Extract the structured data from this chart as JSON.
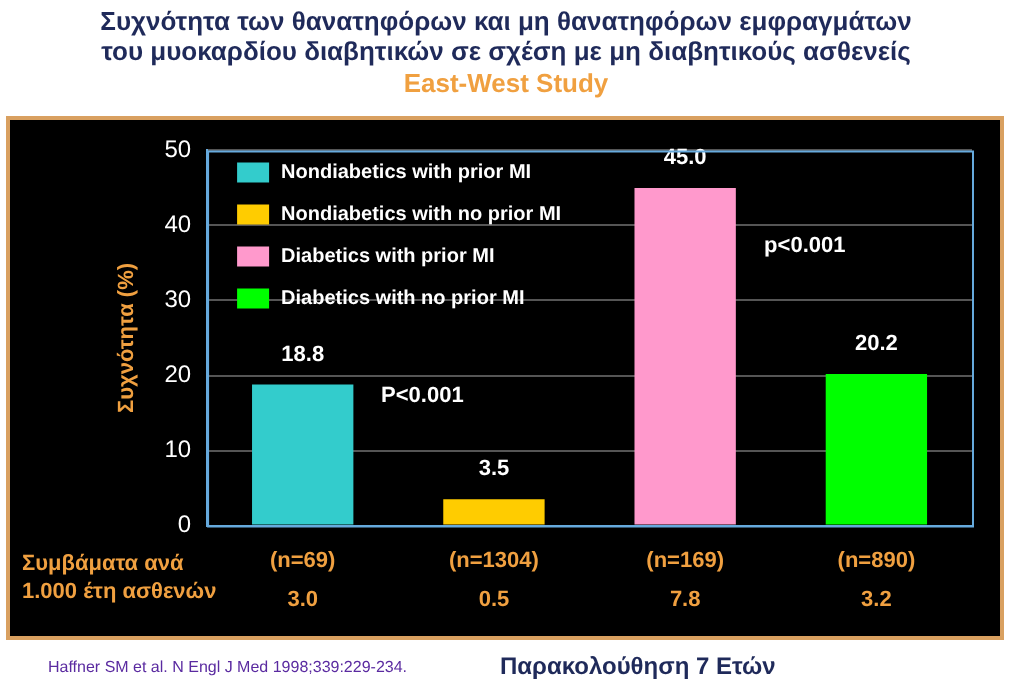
{
  "chart_data": {
    "type": "bar",
    "title": "Συχνότητα των θανατηφόρων και μη θανατηφόρων εμφραγμάτων του μυοκαρδίου διαβητικών σε σχέση με μη διαβητικούς ασθενείς",
    "subtitle": "East-West Study",
    "ylabel": "Συχνότητα (%)",
    "xlabel": "Παρακολούθηση 7 Ετών",
    "categories": [
      "(n=69)",
      "(n=1304)",
      "(n=169)",
      "(n=890)"
    ],
    "series": [
      {
        "name": "Nondiabetics with prior MI",
        "color": "#33cccc",
        "values": [
          18.8,
          null,
          null,
          null
        ],
        "value_labels": [
          "18.8",
          null,
          null,
          null
        ]
      },
      {
        "name": "Nondiabetics with no prior MI",
        "color": "#ffcc00",
        "values": [
          null,
          3.5,
          null,
          null
        ],
        "value_labels": [
          null,
          "3.5",
          null,
          null
        ]
      },
      {
        "name": "Diabetics with prior MI",
        "color": "#ff99cc",
        "values": [
          null,
          null,
          45.0,
          null
        ],
        "value_labels": [
          null,
          null,
          "45.0",
          null
        ]
      },
      {
        "name": "Diabetics with no prior MI",
        "color": "#00ff00",
        "values": [
          null,
          null,
          null,
          20.2
        ],
        "value_labels": [
          null,
          null,
          null,
          "20.2"
        ]
      }
    ],
    "ylim": [
      0,
      50
    ],
    "yticks": [
      0,
      10,
      20,
      30,
      40,
      50
    ],
    "grid": "y",
    "legend": "top left",
    "annotations": [
      "P<0.001",
      "p<0.001",
      "Συμβάματα ανά 1.000 έτη ασθενών",
      "3.0",
      "0.5",
      "7.8",
      "3.2",
      "Haffner SM et al. N Engl J Med 1998;339:229-234."
    ]
  }
}
